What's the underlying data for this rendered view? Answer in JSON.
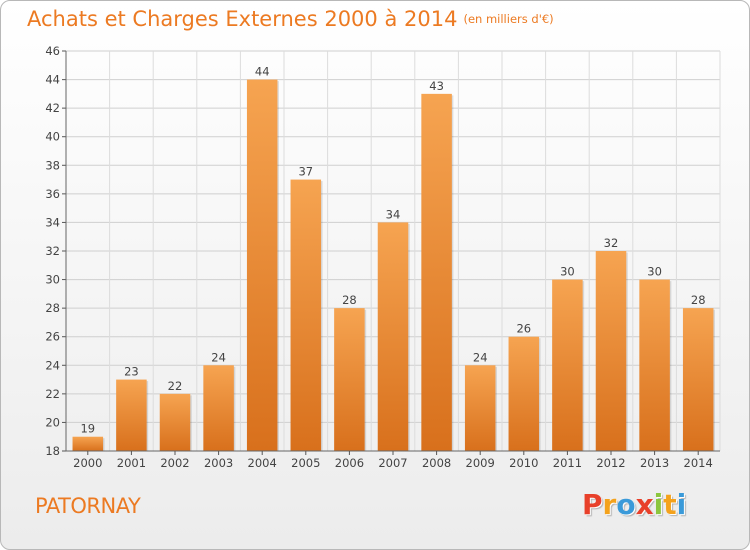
{
  "chart_data": {
    "type": "bar",
    "title": "Achats et Charges Externes 2000 à 2014",
    "subtitle": "(en milliers d'€)",
    "categories": [
      "2000",
      "2001",
      "2002",
      "2003",
      "2004",
      "2005",
      "2006",
      "2007",
      "2008",
      "2009",
      "2010",
      "2011",
      "2012",
      "2013",
      "2014"
    ],
    "values": [
      19,
      23,
      22,
      24,
      44,
      37,
      28,
      34,
      43,
      24,
      26,
      30,
      32,
      30,
      28
    ],
    "ylim": [
      18,
      46
    ],
    "yticks": [
      "18",
      "20",
      "22",
      "24",
      "26",
      "28",
      "30",
      "32",
      "34",
      "36",
      "38",
      "40",
      "42",
      "44",
      "46"
    ],
    "grid": true,
    "bar_color": "#f0923a"
  },
  "footer": {
    "commune": "PATORNAY",
    "brand_letters": [
      "P",
      "r",
      "o",
      "x",
      "i",
      "t",
      "i"
    ],
    "brand_colors": [
      "#e8402a",
      "#f4a21c",
      "#3a9ad9",
      "#e8402a",
      "#8cc63e",
      "#f4a21c",
      "#3a9ad9"
    ]
  }
}
